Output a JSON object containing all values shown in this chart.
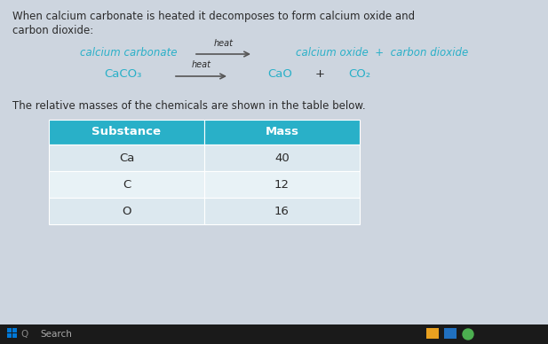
{
  "bg_color": "#cdd5df",
  "text_color_dark": "#2a2a2a",
  "text_color_teal": "#2ab0c8",
  "header_color": "#29b0c8",
  "header_text_color": "#ffffff",
  "row_bg_light": "#dce8ef",
  "row_bg_lighter": "#e8f2f6",
  "intro_text_line1": "When calcium carbonate is heated it decomposes to form calcium oxide and",
  "intro_text_line2": "carbon dioxide:",
  "reaction_word_left": "calcium carbonate",
  "reaction_word_right": "calcium oxide  +  carbon dioxide",
  "reaction_formula_left": "CaCO₃",
  "reaction_formula_right_1": "CaO",
  "reaction_formula_plus": "+",
  "reaction_formula_right_2": "CO₂",
  "heat_label": "heat",
  "table_intro": "The relative masses of the chemicals are shown in the table below.",
  "col_headers": [
    "Substance",
    "Mass"
  ],
  "rows": [
    [
      "Ca",
      "40"
    ],
    [
      "C",
      "12"
    ],
    [
      "O",
      "16"
    ]
  ],
  "taskbar_color": "#1a1a1a",
  "taskbar_search": "Search",
  "fig_w": 6.17,
  "fig_h": 3.88,
  "dpi": 100
}
